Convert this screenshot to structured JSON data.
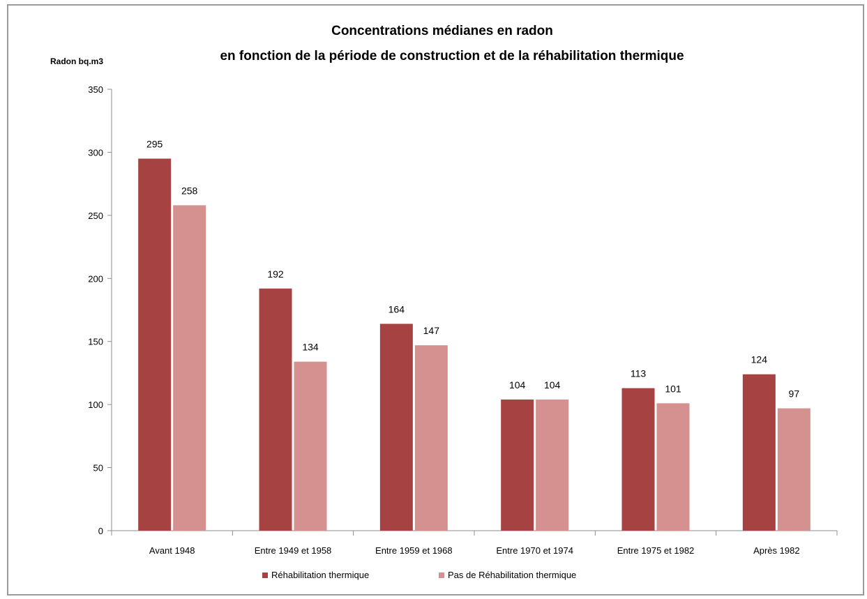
{
  "chart_data": {
    "type": "bar",
    "title_lines": [
      "Concentrations médianes en radon",
      "en fonction de la période de construction et de la réhabilitation thermique"
    ],
    "ylabel": "Radon bq.m3",
    "xlabel": "",
    "ylim": [
      0,
      350
    ],
    "yticks": [
      0,
      50,
      100,
      150,
      200,
      250,
      300,
      350
    ],
    "grid": false,
    "legend_position": "bottom",
    "categories": [
      "Avant 1948",
      "Entre 1949 et 1958",
      "Entre 1959 et 1968",
      "Entre 1970 et 1974",
      "Entre 1975 et 1982",
      "Après 1982"
    ],
    "series": [
      {
        "name": "Réhabilitation thermique",
        "color": "#a64242",
        "values": [
          295,
          192,
          164,
          104,
          113,
          124
        ]
      },
      {
        "name": "Pas de Réhabilitation thermique",
        "color": "#d59190",
        "values": [
          258,
          134,
          147,
          104,
          101,
          97
        ]
      }
    ]
  }
}
